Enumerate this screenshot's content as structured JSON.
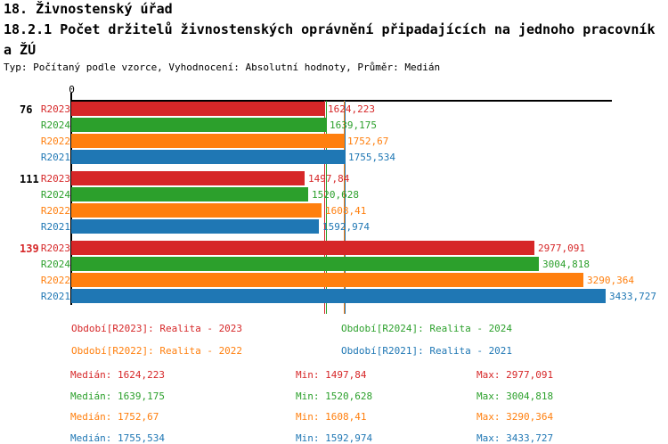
{
  "header": {
    "title": "18. Živnostenský úřad",
    "subtitle_line1": "18.2.1 Počet držitelů živnostenských oprávnění připadajících na jednoho pracovník",
    "subtitle_line2": "a ŽÚ",
    "meta": "Typ: Počítaný podle vzorce, Vyhodnocení: Absolutní hodnoty, Průměr: Medián"
  },
  "chart_data": {
    "type": "bar",
    "orientation": "horizontal",
    "axis_origin_label": "0",
    "xlim": [
      0,
      3468
    ],
    "grid": false,
    "series_colors": {
      "R2023": "#d62728",
      "R2024": "#2ca02c",
      "R2022": "#ff7f0e",
      "R2021": "#1f77b4"
    },
    "groups": [
      {
        "label": "76",
        "label_color": "#000000",
        "bars": [
          {
            "series": "R2023",
            "value": 1624.223,
            "value_label": "1624,223"
          },
          {
            "series": "R2024",
            "value": 1639.175,
            "value_label": "1639,175"
          },
          {
            "series": "R2022",
            "value": 1752.67,
            "value_label": "1752,67"
          },
          {
            "series": "R2021",
            "value": 1755.534,
            "value_label": "1755,534"
          }
        ]
      },
      {
        "label": "111",
        "label_color": "#000000",
        "bars": [
          {
            "series": "R2023",
            "value": 1497.84,
            "value_label": "1497,84"
          },
          {
            "series": "R2024",
            "value": 1520.628,
            "value_label": "1520,628"
          },
          {
            "series": "R2022",
            "value": 1608.41,
            "value_label": "1608,41"
          },
          {
            "series": "R2021",
            "value": 1592.974,
            "value_label": "1592,974"
          }
        ]
      },
      {
        "label": "139",
        "label_color": "#d62728",
        "bars": [
          {
            "series": "R2023",
            "value": 2977.091,
            "value_label": "2977,091"
          },
          {
            "series": "R2024",
            "value": 3004.818,
            "value_label": "3004,818"
          },
          {
            "series": "R2022",
            "value": 3290.364,
            "value_label": "3290,364"
          },
          {
            "series": "R2021",
            "value": 3433.727,
            "value_label": "3433,727"
          }
        ]
      }
    ],
    "median_lines": [
      {
        "series": "R2023",
        "value": 1624.223
      },
      {
        "series": "R2024",
        "value": 1639.175
      },
      {
        "series": "R2022",
        "value": 1752.67
      },
      {
        "series": "R2021",
        "value": 1755.534
      }
    ]
  },
  "legend": [
    {
      "label": "Období[R2023]: Realita - 2023",
      "color": "#d62728"
    },
    {
      "label": "Období[R2024]: Realita - 2024",
      "color": "#2ca02c"
    },
    {
      "label": "Období[R2022]: Realita - 2022",
      "color": "#ff7f0e"
    },
    {
      "label": "Období[R2021]: Realita - 2021",
      "color": "#1f77b4"
    }
  ],
  "stats": [
    {
      "median": "Medián: 1624,223",
      "min": "Min: 1497,84",
      "max": "Max: 2977,091",
      "color": "#d62728"
    },
    {
      "median": "Medián: 1639,175",
      "min": "Min: 1520,628",
      "max": "Max: 3004,818",
      "color": "#2ca02c"
    },
    {
      "median": "Medián: 1752,67",
      "min": "Min: 1608,41",
      "max": "Max: 3290,364",
      "color": "#ff7f0e"
    },
    {
      "median": "Medián: 1755,534",
      "min": "Min: 1592,974",
      "max": "Max: 3433,727",
      "color": "#1f77b4"
    }
  ]
}
